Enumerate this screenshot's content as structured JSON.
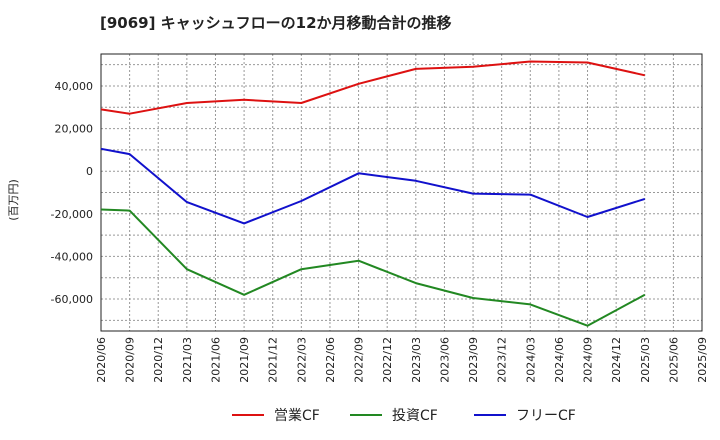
{
  "chart_data": {
    "type": "line",
    "title": "[9069]  キャッシュフローの12か月移動合計の推移",
    "ylabel": "(百万円)",
    "xlabel": "",
    "ylim": [
      -75000,
      55000
    ],
    "yticks": [
      -60000,
      -40000,
      -20000,
      0,
      20000,
      40000
    ],
    "ytick_labels": [
      "-60,000",
      "-40,000",
      "-20,000",
      "0",
      "20,000",
      "40,000"
    ],
    "x": [
      "2020/06",
      "2020/09",
      "2020/12",
      "2021/03",
      "2021/06",
      "2021/09",
      "2021/12",
      "2022/03",
      "2022/06",
      "2022/09",
      "2022/12",
      "2023/03",
      "2023/06",
      "2023/09",
      "2023/12",
      "2024/03",
      "2024/06",
      "2024/09",
      "2024/12",
      "2025/03",
      "2025/06",
      "2025/09"
    ],
    "grid": true,
    "legend_position": "bottom",
    "series": [
      {
        "name": "営業CF",
        "color": "#dd1111",
        "values": [
          29000,
          27000,
          null,
          32000,
          null,
          33500,
          null,
          32000,
          null,
          41000,
          null,
          48000,
          null,
          49000,
          null,
          51500,
          null,
          51000,
          null,
          45000,
          null,
          null
        ]
      },
      {
        "name": "投資CF",
        "color": "#228822",
        "values": [
          -18000,
          -18500,
          null,
          -46000,
          null,
          -58000,
          null,
          -46000,
          null,
          -42000,
          null,
          -52500,
          null,
          -59500,
          null,
          -62500,
          null,
          -72500,
          null,
          -58000,
          null,
          null
        ]
      },
      {
        "name": "フリーCF",
        "color": "#1111cc",
        "values": [
          10500,
          8000,
          null,
          -14500,
          null,
          -24500,
          null,
          -14000,
          null,
          -1000,
          null,
          -4500,
          null,
          -10500,
          null,
          -11000,
          null,
          -21500,
          null,
          -13000,
          null,
          null
        ]
      }
    ]
  }
}
